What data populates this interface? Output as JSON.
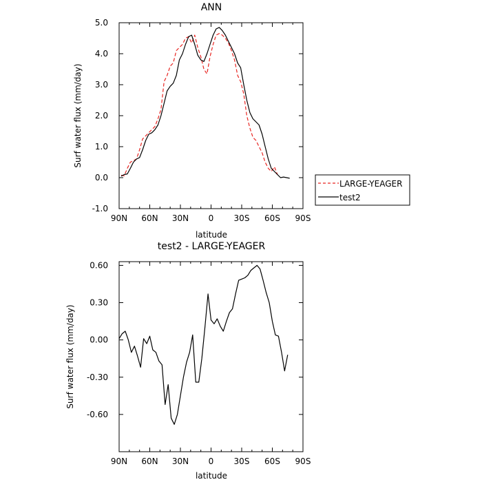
{
  "chart_data": [
    {
      "type": "line",
      "title": "ANN",
      "xlabel": "latitude",
      "ylabel": "Surf water flux (mm/day)",
      "x_ticks": [
        "90N",
        "60N",
        "30N",
        "0",
        "30S",
        "60S",
        "90S"
      ],
      "x_tick_values": [
        -90,
        -60,
        -30,
        0,
        30,
        60,
        90
      ],
      "y_ticks": [
        "5.0",
        "4.0",
        "3.0",
        "2.0",
        "1.0",
        "0.0",
        "-1.0"
      ],
      "y_tick_values": [
        5,
        4,
        3,
        2,
        1,
        0,
        -1
      ],
      "xlim": [
        -90,
        90
      ],
      "ylim": [
        -1,
        5
      ],
      "legend": {
        "placement": "right",
        "entries": [
          "LARGE-YEAGER",
          "test2"
        ]
      },
      "series": [
        {
          "name": "LARGE-YEAGER",
          "color": "#e8231f",
          "dash": "dashed",
          "x": [
            -88,
            -85,
            -82,
            -79,
            -76,
            -73,
            -70,
            -67,
            -64,
            -61,
            -58,
            -55,
            -52,
            -49,
            -46,
            -43,
            -40,
            -37,
            -34,
            -31,
            -28,
            -25,
            -22,
            -19,
            -16,
            -13,
            -10,
            -7,
            -4,
            -1,
            2,
            5,
            8,
            11,
            14,
            17,
            20,
            23,
            26,
            29,
            32,
            35,
            38,
            41,
            44,
            47,
            50,
            53,
            56,
            59,
            62,
            65,
            68,
            71,
            74,
            77,
            80
          ],
          "y": [
            0.08,
            0.06,
            0.3,
            0.5,
            0.55,
            0.6,
            0.9,
            1.25,
            1.35,
            1.45,
            1.55,
            1.65,
            1.9,
            2.2,
            3.1,
            3.3,
            3.6,
            3.7,
            4.1,
            4.2,
            4.3,
            4.5,
            4.55,
            4.35,
            4.6,
            4.2,
            3.9,
            3.5,
            3.35,
            3.9,
            4.3,
            4.6,
            4.65,
            4.6,
            4.5,
            4.35,
            4.1,
            3.8,
            3.3,
            3.1,
            2.7,
            2.0,
            1.6,
            1.3,
            1.2,
            1.0,
            0.8,
            0.5,
            0.3,
            0.2,
            0.35,
            0.1,
            null,
            null,
            null,
            null,
            null
          ]
        },
        {
          "name": "test2",
          "color": "#000000",
          "dash": "solid",
          "x": [
            -88,
            -85,
            -82,
            -79,
            -76,
            -73,
            -70,
            -67,
            -64,
            -61,
            -58,
            -55,
            -52,
            -49,
            -46,
            -43,
            -40,
            -37,
            -34,
            -31,
            -28,
            -25,
            -22,
            -19,
            -16,
            -13,
            -10,
            -7,
            -4,
            -1,
            2,
            5,
            8,
            11,
            14,
            17,
            20,
            23,
            26,
            29,
            32,
            35,
            38,
            41,
            44,
            47,
            50,
            53,
            56,
            59,
            62,
            65,
            68,
            71,
            74,
            77,
            80,
            83,
            86,
            89
          ],
          "y": [
            0.05,
            0.1,
            0.12,
            0.3,
            0.5,
            0.6,
            0.65,
            0.9,
            1.2,
            1.4,
            1.45,
            1.55,
            1.7,
            2.0,
            2.4,
            2.8,
            2.95,
            3.05,
            3.3,
            3.8,
            4.0,
            4.3,
            4.55,
            4.6,
            4.3,
            3.95,
            3.8,
            3.75,
            4.0,
            4.3,
            4.6,
            4.8,
            4.85,
            4.75,
            4.6,
            4.4,
            4.2,
            4.0,
            3.7,
            3.55,
            3.0,
            2.5,
            2.1,
            1.9,
            1.8,
            1.7,
            1.4,
            1.0,
            0.6,
            0.3,
            0.2,
            0.1,
            0.0,
            0.02,
            0.0,
            -0.02,
            null,
            null,
            null,
            null
          ]
        }
      ]
    },
    {
      "type": "line",
      "title": "test2 - LARGE-YEAGER",
      "xlabel": "latitude",
      "ylabel": "Surf water flux (mm/day)",
      "x_ticks": [
        "90N",
        "60N",
        "30N",
        "0",
        "30S",
        "60S",
        "90S"
      ],
      "x_tick_values": [
        -90,
        -60,
        -30,
        0,
        30,
        60,
        90
      ],
      "y_ticks": [
        "0.60",
        "0.30",
        "0.00",
        "-0.30",
        "-0.60"
      ],
      "y_tick_values": [
        0.6,
        0.3,
        0.0,
        -0.3,
        -0.6
      ],
      "xlim": [
        -90,
        90
      ],
      "ylim": [
        -0.9,
        0.63
      ],
      "series": [
        {
          "color": "#000000",
          "dash": "solid",
          "x": [
            -90,
            -87,
            -84,
            -81,
            -78,
            -75,
            -72,
            -69,
            -66,
            -63,
            -60,
            -57,
            -54,
            -51,
            -48,
            -45,
            -42,
            -39,
            -36,
            -33,
            -30,
            -27,
            -24,
            -21,
            -18,
            -15,
            -12,
            -9,
            -6,
            -3,
            0,
            3,
            6,
            9,
            12,
            15,
            18,
            21,
            24,
            27,
            30,
            33,
            36,
            39,
            42,
            45,
            48,
            51,
            54,
            57,
            60,
            63,
            66,
            69,
            72,
            75,
            78,
            80
          ],
          "y": [
            0.01,
            0.05,
            0.07,
            0.0,
            -0.1,
            -0.05,
            -0.13,
            -0.22,
            0.01,
            -0.03,
            0.03,
            -0.08,
            -0.1,
            -0.17,
            -0.2,
            -0.52,
            -0.36,
            -0.63,
            -0.68,
            -0.6,
            -0.45,
            -0.3,
            -0.18,
            -0.1,
            0.04,
            -0.34,
            -0.34,
            -0.15,
            0.1,
            0.37,
            0.16,
            0.13,
            0.17,
            0.11,
            0.07,
            0.15,
            0.22,
            0.25,
            0.37,
            0.48,
            0.49,
            0.5,
            0.52,
            0.56,
            0.58,
            0.6,
            0.57,
            0.48,
            0.38,
            0.3,
            0.15,
            0.04,
            0.03,
            -0.1,
            -0.25,
            -0.12,
            null,
            null
          ]
        }
      ]
    }
  ]
}
